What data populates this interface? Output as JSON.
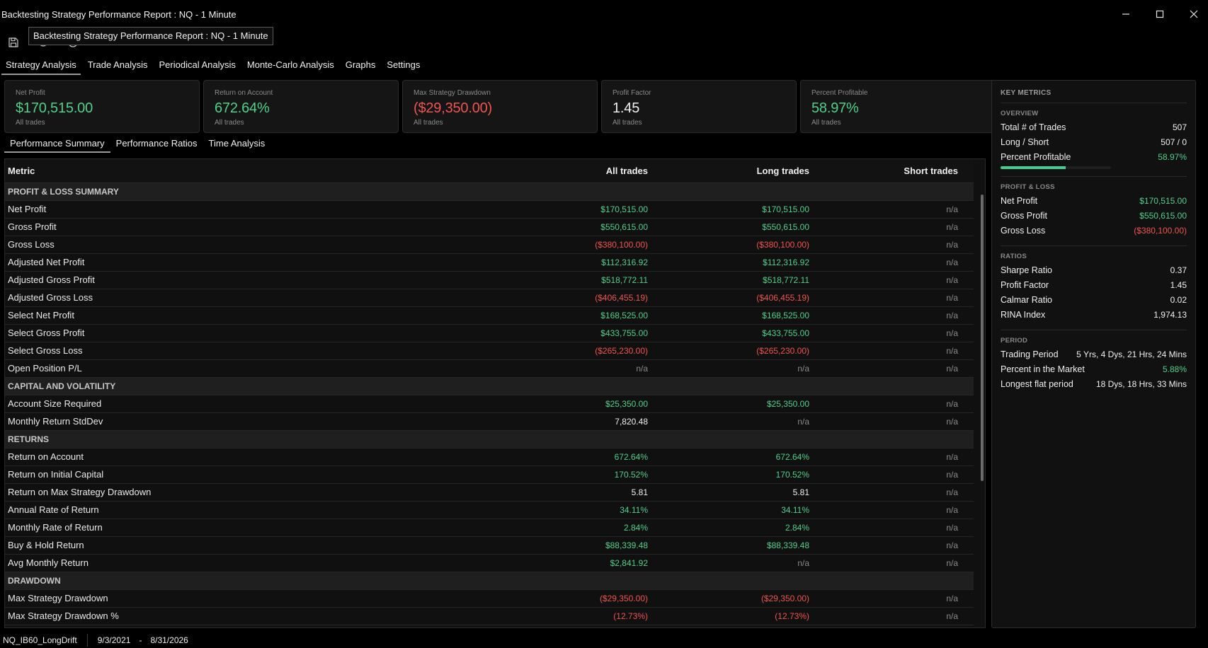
{
  "window": {
    "title": "Backtesting Strategy Performance Report : NQ - 1 Minute",
    "tooltip": "Backtesting Strategy Performance Report : NQ - 1 Minute"
  },
  "toolbar": {
    "icons": [
      "save-icon",
      "settings-icon",
      "refresh-icon"
    ]
  },
  "tabs": [
    "Strategy Analysis",
    "Trade Analysis",
    "Periodical Analysis",
    "Monte-Carlo Analysis",
    "Graphs",
    "Settings"
  ],
  "cards": [
    {
      "label": "Net Profit",
      "value": "$170,515.00",
      "sub": "All trades",
      "tone": "pos"
    },
    {
      "label": "Return on Account",
      "value": "672.64%",
      "sub": "All trades",
      "tone": "pos"
    },
    {
      "label": "Max Strategy Drawdown",
      "value": "($29,350.00)",
      "sub": "All trades",
      "tone": "neg"
    },
    {
      "label": "Profit Factor",
      "value": "1.45",
      "sub": "All trades",
      "tone": "neu"
    },
    {
      "label": "Percent Profitable",
      "value": "58.97%",
      "sub": "All trades",
      "tone": "pos"
    }
  ],
  "subtabs": [
    "Performance Summary",
    "Performance Ratios",
    "Time Analysis"
  ],
  "table": {
    "headers": [
      "Metric",
      "All trades",
      "Long trades",
      "Short trades"
    ],
    "rows": [
      {
        "section": "PROFIT & LOSS SUMMARY"
      },
      {
        "cells": [
          "Net Profit",
          "$170,515.00",
          "$170,515.00",
          "n/a"
        ],
        "tones": [
          "pos",
          "pos",
          "na"
        ]
      },
      {
        "cells": [
          "Gross Profit",
          "$550,615.00",
          "$550,615.00",
          "n/a"
        ],
        "tones": [
          "pos",
          "pos",
          "na"
        ]
      },
      {
        "cells": [
          "Gross Loss",
          "($380,100.00)",
          "($380,100.00)",
          "n/a"
        ],
        "tones": [
          "neg",
          "neg",
          "na"
        ]
      },
      {
        "cells": [
          "Adjusted Net Profit",
          "$112,316.92",
          "$112,316.92",
          "n/a"
        ],
        "tones": [
          "pos",
          "pos",
          "na"
        ]
      },
      {
        "cells": [
          "Adjusted Gross Profit",
          "$518,772.11",
          "$518,772.11",
          "n/a"
        ],
        "tones": [
          "pos",
          "pos",
          "na"
        ]
      },
      {
        "cells": [
          "Adjusted Gross Loss",
          "($406,455.19)",
          "($406,455.19)",
          "n/a"
        ],
        "tones": [
          "neg",
          "neg",
          "na"
        ]
      },
      {
        "cells": [
          "Select Net Profit",
          "$168,525.00",
          "$168,525.00",
          "n/a"
        ],
        "tones": [
          "pos",
          "pos",
          "na"
        ]
      },
      {
        "cells": [
          "Select Gross Profit",
          "$433,755.00",
          "$433,755.00",
          "n/a"
        ],
        "tones": [
          "pos",
          "pos",
          "na"
        ]
      },
      {
        "cells": [
          "Select Gross Loss",
          "($265,230.00)",
          "($265,230.00)",
          "n/a"
        ],
        "tones": [
          "neg",
          "neg",
          "na"
        ]
      },
      {
        "cells": [
          "Open Position P/L",
          "n/a",
          "n/a",
          "n/a"
        ],
        "tones": [
          "na",
          "na",
          "na"
        ]
      },
      {
        "section": "CAPITAL AND VOLATILITY"
      },
      {
        "cells": [
          "Account Size Required",
          "$25,350.00",
          "$25,350.00",
          "n/a"
        ],
        "tones": [
          "pos",
          "pos",
          "na"
        ]
      },
      {
        "cells": [
          "Monthly Return StdDev",
          "7,820.48",
          "n/a",
          "n/a"
        ],
        "tones": [
          "neu",
          "na",
          "na"
        ]
      },
      {
        "section": "RETURNS"
      },
      {
        "cells": [
          "Return on Account",
          "672.64%",
          "672.64%",
          "n/a"
        ],
        "tones": [
          "pos",
          "pos",
          "na"
        ]
      },
      {
        "cells": [
          "Return on Initial Capital",
          "170.52%",
          "170.52%",
          "n/a"
        ],
        "tones": [
          "pos",
          "pos",
          "na"
        ]
      },
      {
        "cells": [
          "Return on Max Strategy Drawdown",
          "5.81",
          "5.81",
          "n/a"
        ],
        "tones": [
          "neu",
          "neu",
          "na"
        ]
      },
      {
        "cells": [
          "Annual Rate of Return",
          "34.11%",
          "34.11%",
          "n/a"
        ],
        "tones": [
          "pos",
          "pos",
          "na"
        ]
      },
      {
        "cells": [
          "Monthly Rate of Return",
          "2.84%",
          "2.84%",
          "n/a"
        ],
        "tones": [
          "pos",
          "pos",
          "na"
        ]
      },
      {
        "cells": [
          "Buy & Hold Return",
          "$88,339.48",
          "$88,339.48",
          "n/a"
        ],
        "tones": [
          "pos",
          "pos",
          "na"
        ]
      },
      {
        "cells": [
          "Avg Monthly Return",
          "$2,841.92",
          "n/a",
          "n/a"
        ],
        "tones": [
          "pos",
          "na",
          "na"
        ]
      },
      {
        "section": "DRAWDOWN"
      },
      {
        "cells": [
          "Max Strategy Drawdown",
          "($29,350.00)",
          "($29,350.00)",
          "n/a"
        ],
        "tones": [
          "neg",
          "neg",
          "na"
        ]
      },
      {
        "cells": [
          "Max Strategy Drawdown %",
          "(12.73%)",
          "(12.73%)",
          "n/a"
        ],
        "tones": [
          "neg",
          "neg",
          "na"
        ]
      }
    ]
  },
  "key_metrics": {
    "title": "KEY METRICS",
    "groups": [
      {
        "name": "OVERVIEW",
        "rows": [
          {
            "label": "Total # of Trades",
            "value": "507",
            "tone": "neu"
          },
          {
            "label": "Long / Short",
            "value": "507 / 0",
            "tone": "neu"
          },
          {
            "label": "Percent Profitable",
            "value": "58.97%",
            "tone": "pos"
          }
        ],
        "progress": 0.5897
      },
      {
        "name": "PROFIT & LOSS",
        "rows": [
          {
            "label": "Net Profit",
            "value": "$170,515.00",
            "tone": "pos"
          },
          {
            "label": "Gross Profit",
            "value": "$550,615.00",
            "tone": "pos"
          },
          {
            "label": "Gross Loss",
            "value": "($380,100.00)",
            "tone": "neg"
          }
        ]
      },
      {
        "name": "RATIOS",
        "rows": [
          {
            "label": "Sharpe Ratio",
            "value": "0.37",
            "tone": "neu"
          },
          {
            "label": "Profit Factor",
            "value": "1.45",
            "tone": "neu"
          },
          {
            "label": "Calmar Ratio",
            "value": "0.02",
            "tone": "neu"
          },
          {
            "label": "RINA Index",
            "value": "1,974.13",
            "tone": "neu"
          }
        ]
      },
      {
        "name": "PERIOD",
        "rows": [
          {
            "label": "Trading Period",
            "value": "5 Yrs, 4 Dys, 21 Hrs, 24 Mins",
            "tone": "neu"
          },
          {
            "label": "Percent in the Market",
            "value": "5.88%",
            "tone": "pos"
          },
          {
            "label": "Longest flat period",
            "value": "18 Dys, 18 Hrs, 33 Mins",
            "tone": "neu"
          }
        ]
      }
    ]
  },
  "status": {
    "strategy": "NQ_IB60_LongDrift",
    "start": "9/3/2021",
    "dash": "-",
    "end": "8/31/2026"
  },
  "colors": {
    "positive": "#4fd18b",
    "negative": "#f0544f",
    "background": "#000000",
    "panel": "#151515"
  }
}
